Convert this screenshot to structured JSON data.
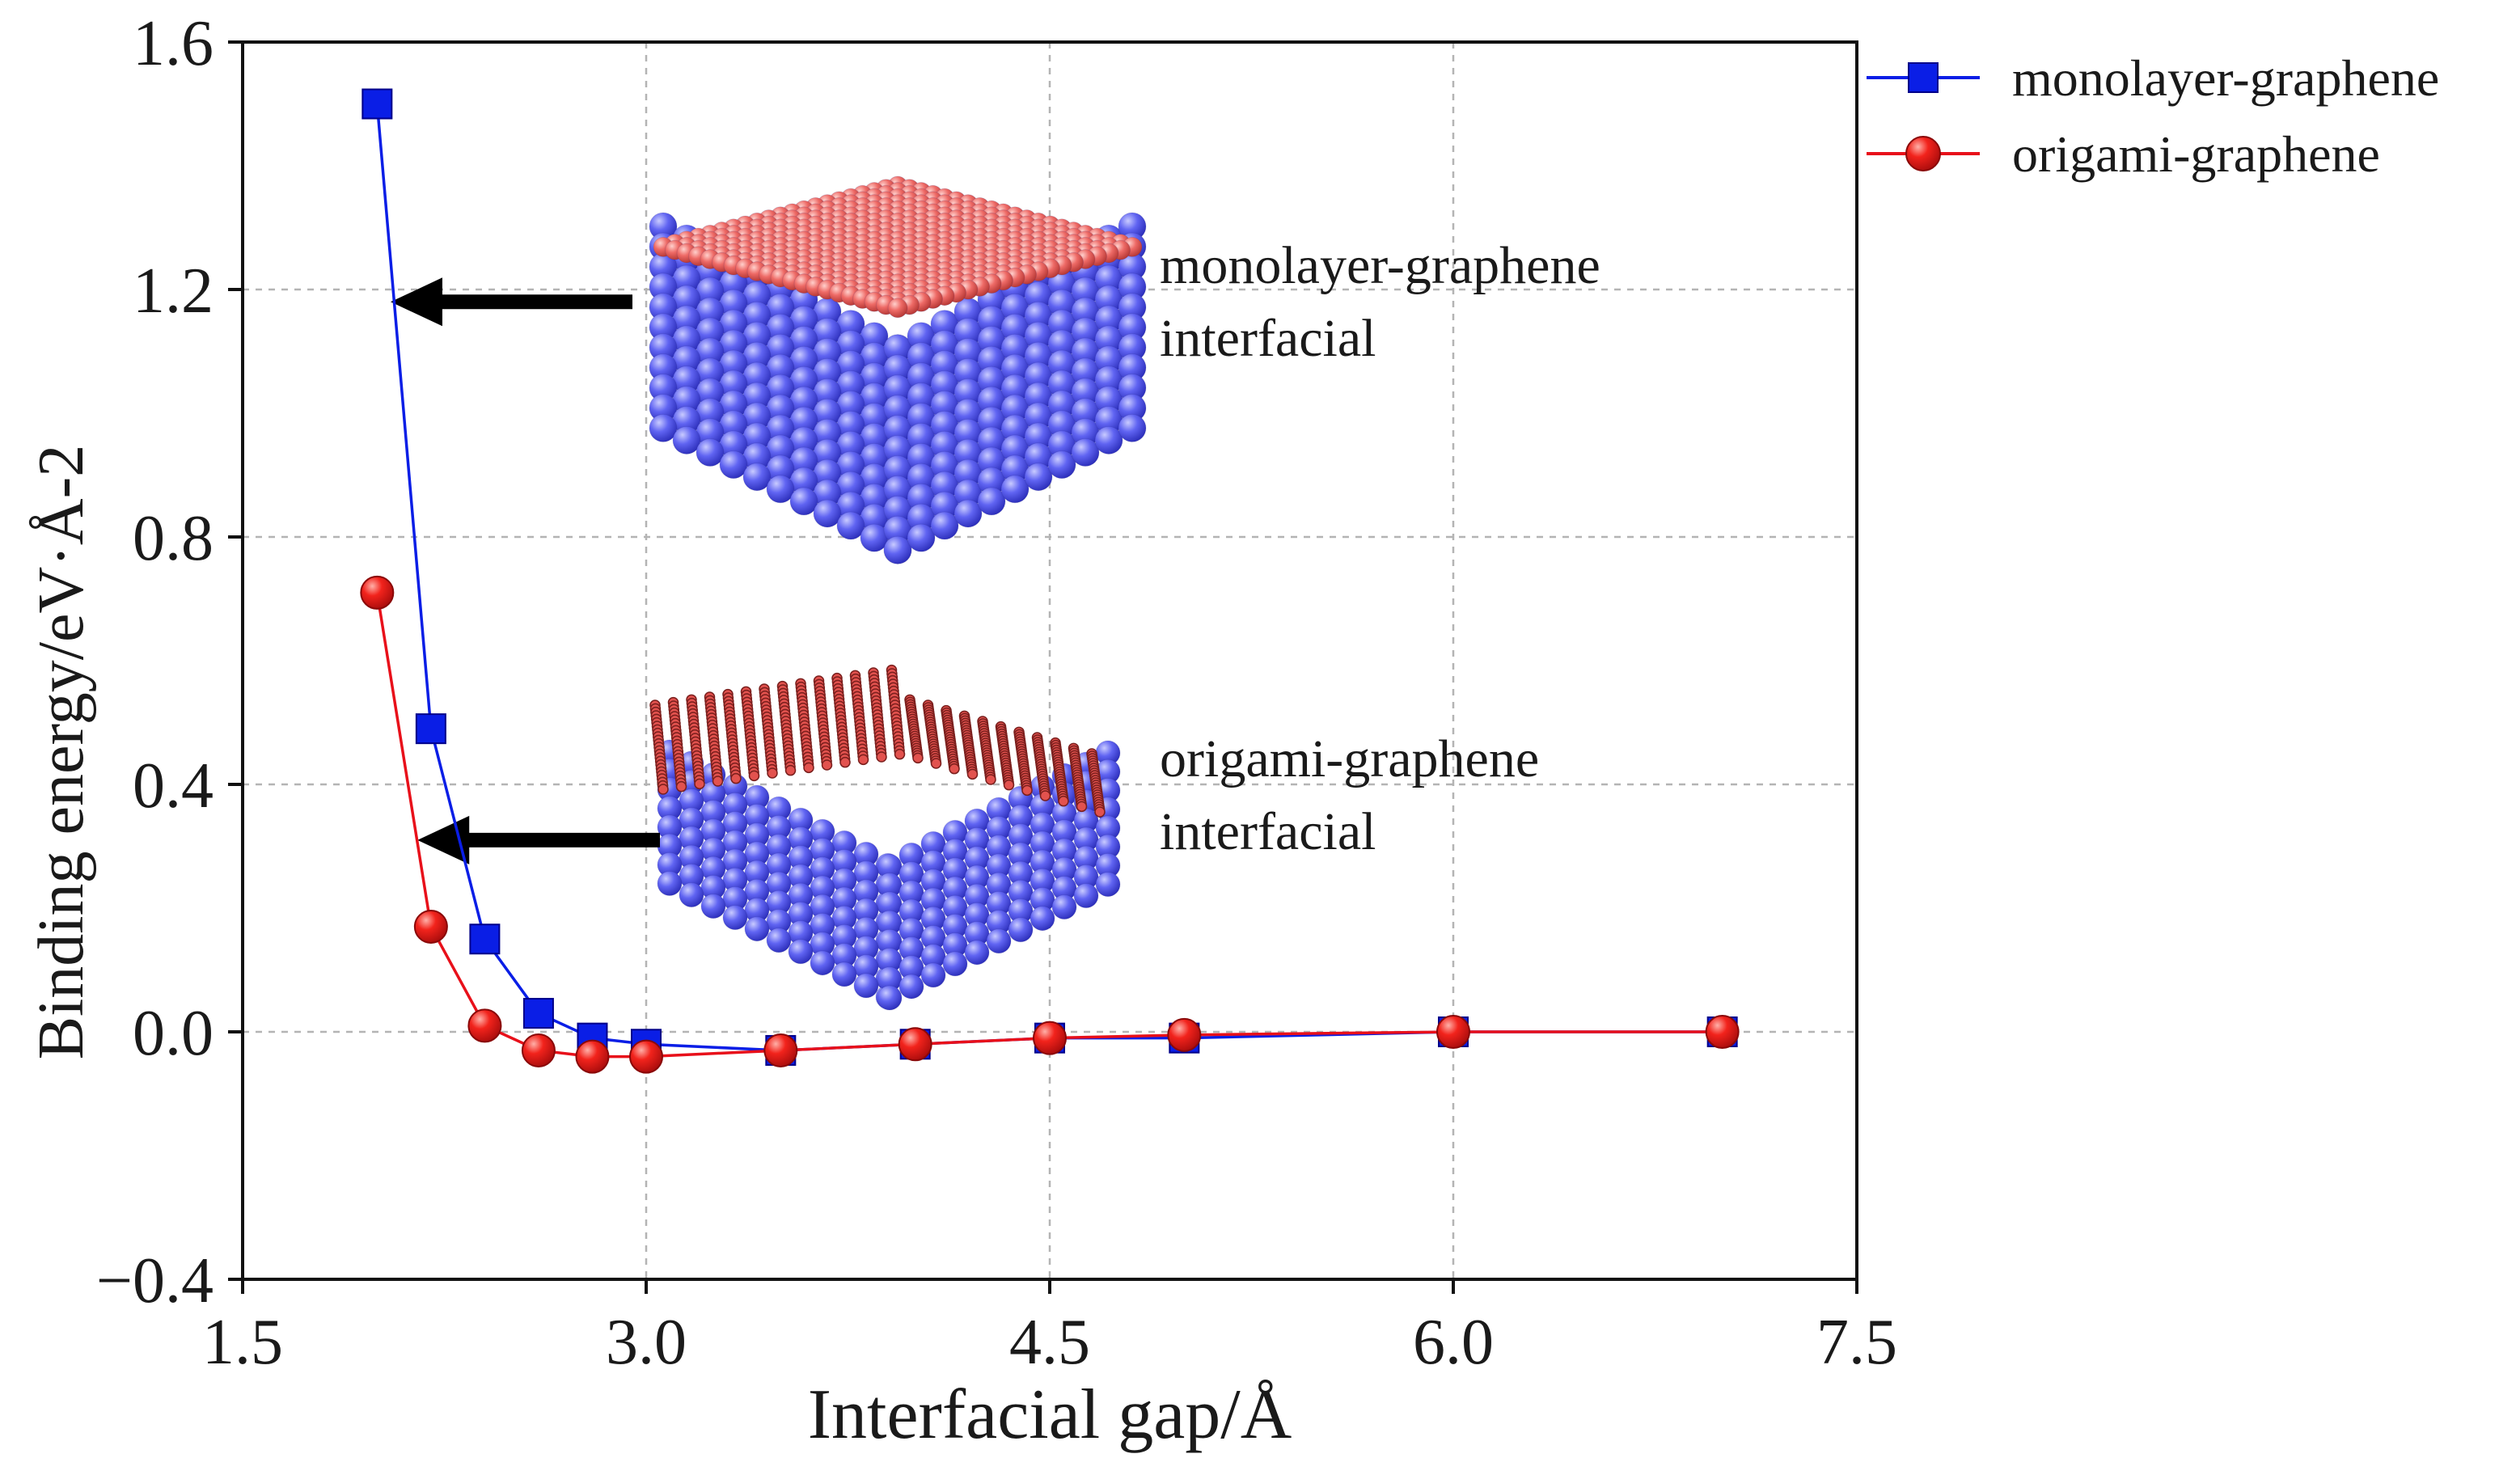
{
  "chart_data": {
    "type": "line",
    "title": "",
    "xlabel": "Interfacial gap/Å",
    "ylabel": "Binding energy/eV·Å-2",
    "xlim": [
      1.5,
      7.5
    ],
    "ylim": [
      -0.4,
      1.6
    ],
    "xticks": [
      1.5,
      3.0,
      4.5,
      6.0,
      7.5
    ],
    "xtick_labels": [
      "1.5",
      "3.0",
      "4.5",
      "6.0",
      "7.5"
    ],
    "yticks": [
      -0.4,
      0.0,
      0.4,
      0.8,
      1.2,
      1.6
    ],
    "ytick_labels": [
      "−0.4",
      "0.0",
      "0.4",
      "0.8",
      "1.2",
      "1.6"
    ],
    "grid": true,
    "legend_position": "outside-top-right",
    "x": [
      2.0,
      2.2,
      2.4,
      2.6,
      2.8,
      3.0,
      3.5,
      4.0,
      4.5,
      5.0,
      6.0,
      7.0
    ],
    "series": [
      {
        "name": "monolayer-graphene",
        "color": "#0a1ee6",
        "marker": "square",
        "values": [
          1.5,
          0.49,
          0.15,
          0.03,
          -0.01,
          -0.02,
          -0.03,
          -0.02,
          -0.01,
          -0.01,
          0.0,
          0.0
        ]
      },
      {
        "name": "origami-graphene",
        "color": "#e8101a",
        "marker": "circle",
        "values": [
          0.71,
          0.17,
          0.01,
          -0.03,
          -0.04,
          -0.04,
          -0.03,
          -0.02,
          -0.01,
          -0.005,
          0.0,
          0.0
        ]
      }
    ],
    "annotations": [
      {
        "label_lines": [
          "monolayer-graphene",
          "interfacial"
        ],
        "image": "monolayer-graphene-interface-model",
        "arrow_target": {
          "x": 2.05,
          "y": 1.18
        }
      },
      {
        "label_lines": [
          "origami-graphene",
          "interfacial"
        ],
        "image": "origami-graphene-interface-model",
        "arrow_target": {
          "x": 2.15,
          "y": 0.31
        }
      }
    ],
    "colors": {
      "substrate": "#5c5ff0",
      "graphene": "#ee6a66",
      "arrow": "#000000",
      "grid": "#b4b4b4"
    }
  }
}
